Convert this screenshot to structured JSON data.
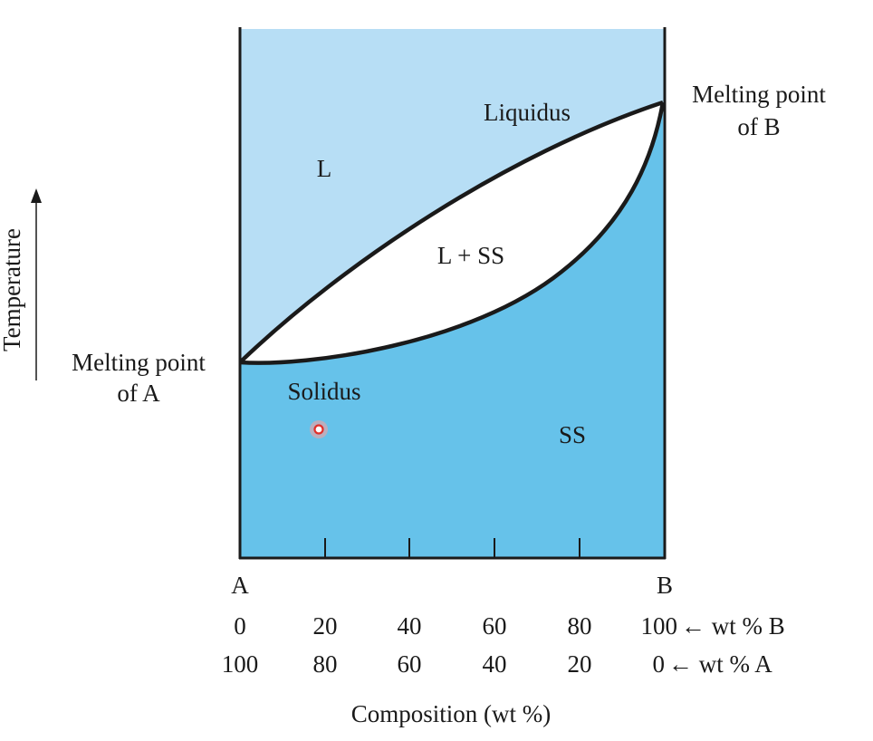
{
  "colors": {
    "liquid_region": "#b7def5",
    "solid_region": "#66c2ea",
    "two_phase_region": "#ffffff",
    "curve": "#1a1a1a",
    "cursor": "#e0302a"
  },
  "labels": {
    "liquidus": "Liquidus",
    "solidus": "Solidus",
    "liquid": "L",
    "two_phase": "L + SS",
    "solid_solution": "SS",
    "melting_point_a_line1": "Melting point",
    "melting_point_a_line2": "of A",
    "melting_point_b_line1": "Melting point",
    "melting_point_b_line2": "of B",
    "end_a": "A",
    "end_b": "B",
    "temperature_axis": "Temperature",
    "composition_axis": "Composition (wt %)"
  },
  "ticks": {
    "wt_b": [
      "0",
      "20",
      "40",
      "60",
      "80",
      "100"
    ],
    "wt_a": [
      "100",
      "80",
      "60",
      "40",
      "20",
      "0"
    ],
    "wt_b_suffix": "← wt % B",
    "wt_a_suffix": "← wt % A"
  },
  "cursor_icon": "recording-cursor-dot"
}
